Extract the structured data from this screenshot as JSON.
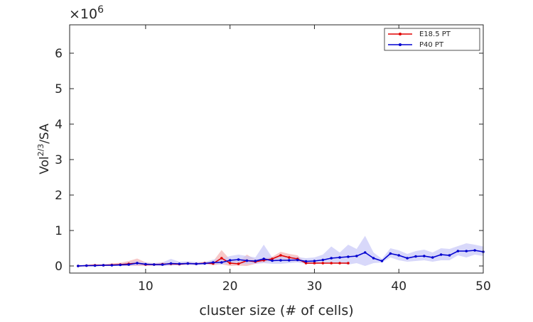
{
  "chart_data": {
    "type": "line",
    "title": "",
    "xlabel": "cluster size (# of cells)",
    "ylabel_base": "Vol",
    "ylabel_sup": "2/3",
    "ylabel_tail": "/SA",
    "y_exponent_base": "×10",
    "y_exponent_power": "6",
    "xlim": [
      1,
      50
    ],
    "ylim": [
      -0.2,
      6.8
    ],
    "xticks": [
      10,
      20,
      30,
      40,
      50
    ],
    "yticks": [
      0,
      1,
      2,
      3,
      4,
      5,
      6
    ],
    "legend_position": "top-right",
    "grid": false,
    "series": [
      {
        "name": "E18.5 PT",
        "color": "#e00000",
        "band_color": "#f4b0b0",
        "x": [
          2,
          3,
          4,
          5,
          6,
          7,
          8,
          9,
          10,
          11,
          12,
          13,
          14,
          15,
          16,
          17,
          18,
          19,
          20,
          21,
          22,
          23,
          24,
          25,
          26,
          27,
          28,
          29,
          30,
          31,
          32,
          33,
          34
        ],
        "y": [
          0.0,
          0.01,
          0.02,
          0.02,
          0.03,
          0.04,
          0.06,
          0.08,
          0.04,
          0.04,
          0.05,
          0.06,
          0.05,
          0.07,
          0.06,
          0.08,
          0.07,
          0.22,
          0.08,
          0.06,
          0.15,
          0.12,
          0.16,
          0.2,
          0.3,
          0.24,
          0.2,
          0.08,
          0.08,
          0.08,
          0.08,
          0.08,
          0.08
        ],
        "lower": [
          -0.02,
          -0.01,
          0.0,
          0.0,
          0.0,
          0.0,
          0.0,
          0.0,
          0.0,
          0.01,
          0.0,
          0.02,
          0.02,
          0.03,
          0.03,
          0.05,
          0.02,
          0.05,
          0.0,
          0.01,
          0.0,
          0.06,
          0.1,
          0.14,
          0.2,
          0.14,
          0.12,
          0.08,
          0.08,
          0.08,
          0.08,
          0.08,
          0.08
        ],
        "upper": [
          0.03,
          0.03,
          0.05,
          0.05,
          0.07,
          0.09,
          0.14,
          0.21,
          0.1,
          0.08,
          0.1,
          0.1,
          0.09,
          0.11,
          0.09,
          0.12,
          0.13,
          0.45,
          0.18,
          0.12,
          0.32,
          0.18,
          0.22,
          0.26,
          0.4,
          0.34,
          0.3,
          0.08,
          0.08,
          0.08,
          0.08,
          0.08,
          0.08
        ]
      },
      {
        "name": "P40 PT",
        "color": "#0000d0",
        "band_color": "#c8c8f8",
        "x": [
          2,
          3,
          4,
          5,
          6,
          7,
          8,
          9,
          10,
          11,
          12,
          13,
          14,
          15,
          16,
          17,
          18,
          19,
          20,
          21,
          22,
          23,
          24,
          25,
          26,
          27,
          28,
          29,
          30,
          31,
          32,
          33,
          34,
          35,
          36,
          37,
          38,
          39,
          40,
          41,
          42,
          43,
          44,
          45,
          46,
          47,
          48,
          49,
          50
        ],
        "y": [
          0.0,
          0.01,
          0.01,
          0.02,
          0.02,
          0.03,
          0.04,
          0.08,
          0.05,
          0.04,
          0.04,
          0.07,
          0.06,
          0.07,
          0.06,
          0.07,
          0.1,
          0.1,
          0.16,
          0.18,
          0.15,
          0.14,
          0.2,
          0.15,
          0.16,
          0.16,
          0.17,
          0.13,
          0.14,
          0.17,
          0.22,
          0.24,
          0.26,
          0.28,
          0.38,
          0.22,
          0.14,
          0.35,
          0.3,
          0.22,
          0.27,
          0.28,
          0.24,
          0.32,
          0.3,
          0.42,
          0.42,
          0.44,
          0.4
        ],
        "lower": [
          -0.02,
          -0.01,
          -0.01,
          0.0,
          0.0,
          0.0,
          0.0,
          0.02,
          0.02,
          0.01,
          0.0,
          0.01,
          0.02,
          0.03,
          0.02,
          0.04,
          0.05,
          0.04,
          0.08,
          0.07,
          0.06,
          0.06,
          0.08,
          0.06,
          0.06,
          0.08,
          0.1,
          0.06,
          0.06,
          0.08,
          0.1,
          0.08,
          0.04,
          0.08,
          0.0,
          0.08,
          0.1,
          0.24,
          0.16,
          0.12,
          0.14,
          0.16,
          0.12,
          0.16,
          0.16,
          0.3,
          0.24,
          0.32,
          0.28
        ],
        "upper": [
          0.03,
          0.03,
          0.04,
          0.05,
          0.05,
          0.07,
          0.1,
          0.14,
          0.09,
          0.08,
          0.1,
          0.2,
          0.12,
          0.13,
          0.11,
          0.11,
          0.18,
          0.2,
          0.28,
          0.32,
          0.28,
          0.24,
          0.6,
          0.24,
          0.26,
          0.26,
          0.25,
          0.22,
          0.24,
          0.32,
          0.55,
          0.38,
          0.6,
          0.48,
          0.85,
          0.38,
          0.2,
          0.5,
          0.44,
          0.34,
          0.42,
          0.46,
          0.38,
          0.5,
          0.48,
          0.56,
          0.64,
          0.6,
          0.55
        ]
      }
    ]
  }
}
